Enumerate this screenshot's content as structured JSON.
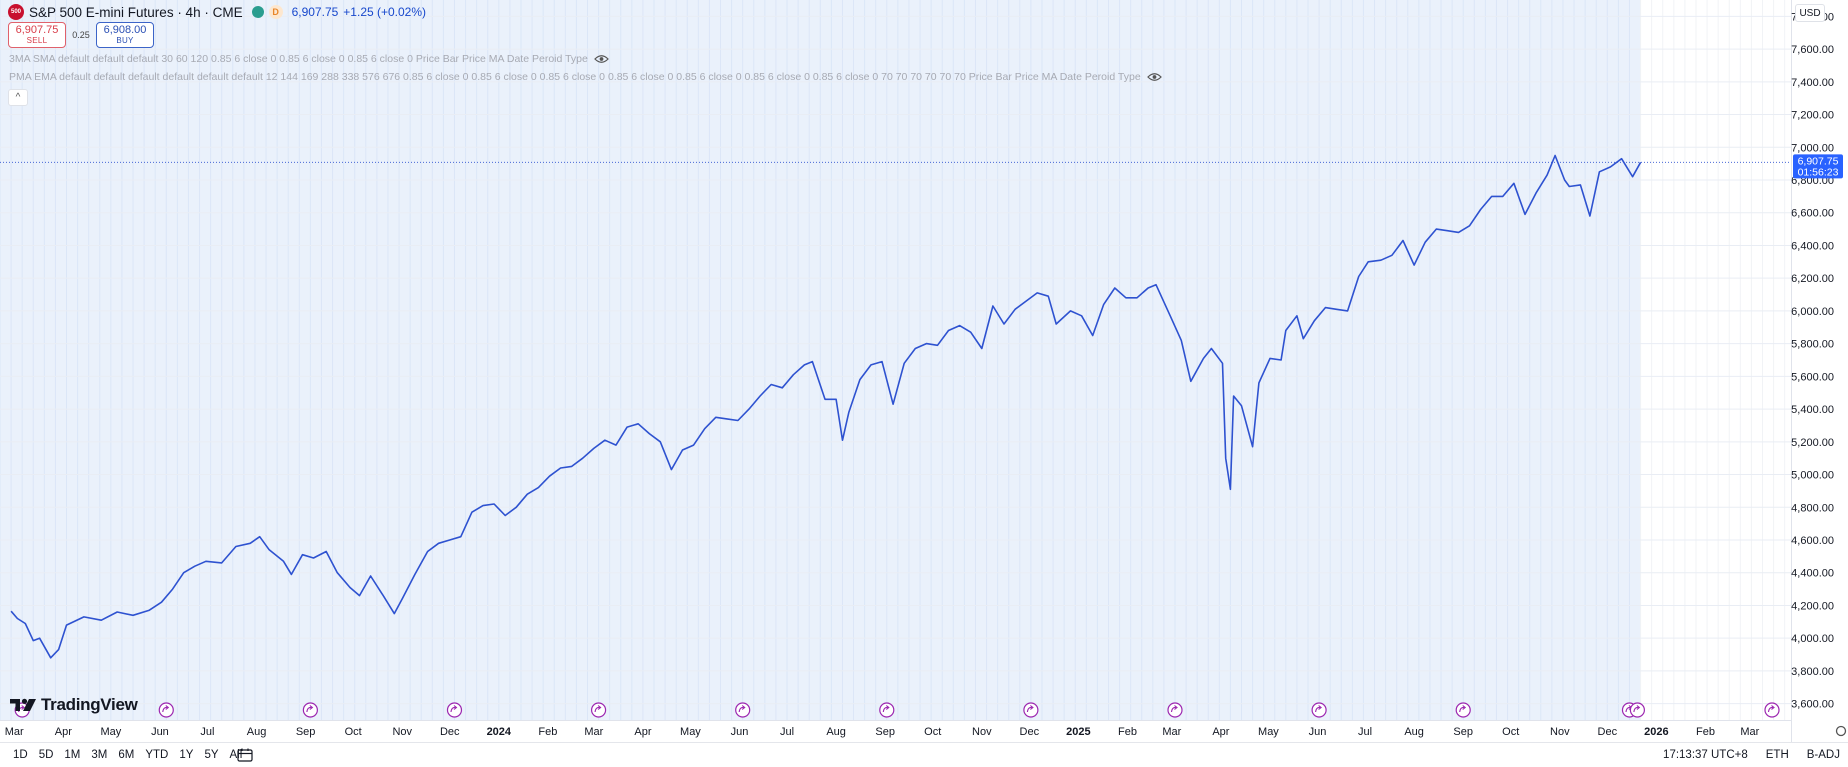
{
  "window": {
    "symbol_logo_text": "500",
    "title": "S&P 500 E-mini Futures · 4h · CME",
    "flag": "D",
    "last_price": "6,907.75",
    "change": "+1.25 (+0.02%)"
  },
  "trade": {
    "sell_price": "6,907.75",
    "sell_label": "SELL",
    "spread": "0.25",
    "buy_price": "6,908.00",
    "buy_label": "BUY"
  },
  "indicators": [
    {
      "text": "3MA SMA default default default 30 60 120 0.85 6 close 0 0.85 6 close 0 0.85 6 close 0 Price Bar Price MA Date Peroid Type"
    },
    {
      "text": "PMA EMA default default default default default default 12 144 169 288 338 576 676 0.85 6 close 0 0.85 6 close 0 0.85 6 close 0 0.85 6 close 0 0.85 6 close 0 0.85 6 close 0 0.85 6 close 0 70 70 70 70 70 70 Price Bar Price MA Date Peroid Type"
    }
  ],
  "collapse_symbol": "^",
  "logo_text": "TradingView",
  "currency": "USD",
  "price_label": {
    "price": "6,907.75",
    "countdown": "01:56:23"
  },
  "ranges": [
    "1D",
    "5D",
    "1M",
    "3M",
    "6M",
    "YTD",
    "1Y",
    "5Y",
    "All"
  ],
  "status": {
    "time": "17:13:37 UTC+8",
    "session": "ETH",
    "adjust": "B-ADJ"
  },
  "colors": {
    "series": "#2e52d0",
    "band": "#eaf1fb",
    "accent": "#2962ff",
    "event_marker": "#9c27b0"
  },
  "icons": {
    "settings": "gear-icon",
    "calendar": "calendar-icon",
    "eye": "eye-icon",
    "event": "event-arrow-icon"
  },
  "chart_data": {
    "type": "line",
    "series": [
      {
        "values": [
          [
            "2023-02-27",
            4165
          ],
          [
            "2023-03-03",
            4120
          ],
          [
            "2023-03-08",
            4090
          ],
          [
            "2023-03-13",
            3985
          ],
          [
            "2023-03-17",
            4000
          ],
          [
            "2023-03-24",
            3880
          ],
          [
            "2023-03-29",
            3930
          ],
          [
            "2023-04-03",
            4080
          ],
          [
            "2023-04-14",
            4130
          ],
          [
            "2023-04-25",
            4110
          ],
          [
            "2023-05-05",
            4160
          ],
          [
            "2023-05-15",
            4140
          ],
          [
            "2023-05-25",
            4170
          ],
          [
            "2023-06-02",
            4220
          ],
          [
            "2023-06-09",
            4300
          ],
          [
            "2023-06-16",
            4400
          ],
          [
            "2023-06-23",
            4440
          ],
          [
            "2023-06-30",
            4470
          ],
          [
            "2023-07-10",
            4460
          ],
          [
            "2023-07-19",
            4560
          ],
          [
            "2023-07-28",
            4580
          ],
          [
            "2023-08-03",
            4620
          ],
          [
            "2023-08-09",
            4540
          ],
          [
            "2023-08-18",
            4470
          ],
          [
            "2023-08-23",
            4390
          ],
          [
            "2023-08-30",
            4510
          ],
          [
            "2023-09-06",
            4490
          ],
          [
            "2023-09-14",
            4530
          ],
          [
            "2023-09-21",
            4400
          ],
          [
            "2023-09-29",
            4310
          ],
          [
            "2023-10-05",
            4260
          ],
          [
            "2023-10-12",
            4380
          ],
          [
            "2023-10-20",
            4260
          ],
          [
            "2023-10-27",
            4150
          ],
          [
            "2023-11-01",
            4240
          ],
          [
            "2023-11-09",
            4390
          ],
          [
            "2023-11-17",
            4530
          ],
          [
            "2023-11-24",
            4580
          ],
          [
            "2023-12-01",
            4600
          ],
          [
            "2023-12-08",
            4620
          ],
          [
            "2023-12-15",
            4770
          ],
          [
            "2023-12-22",
            4810
          ],
          [
            "2023-12-29",
            4820
          ],
          [
            "2024-01-05",
            4750
          ],
          [
            "2024-01-12",
            4800
          ],
          [
            "2024-01-19",
            4880
          ],
          [
            "2024-01-26",
            4920
          ],
          [
            "2024-02-02",
            4990
          ],
          [
            "2024-02-09",
            5040
          ],
          [
            "2024-02-16",
            5050
          ],
          [
            "2024-02-23",
            5100
          ],
          [
            "2024-03-01",
            5160
          ],
          [
            "2024-03-08",
            5210
          ],
          [
            "2024-03-15",
            5180
          ],
          [
            "2024-03-22",
            5290
          ],
          [
            "2024-03-29",
            5310
          ],
          [
            "2024-04-05",
            5250
          ],
          [
            "2024-04-12",
            5200
          ],
          [
            "2024-04-19",
            5030
          ],
          [
            "2024-04-26",
            5150
          ],
          [
            "2024-05-03",
            5180
          ],
          [
            "2024-05-10",
            5280
          ],
          [
            "2024-05-17",
            5350
          ],
          [
            "2024-05-24",
            5340
          ],
          [
            "2024-05-31",
            5330
          ],
          [
            "2024-06-07",
            5400
          ],
          [
            "2024-06-14",
            5480
          ],
          [
            "2024-06-21",
            5550
          ],
          [
            "2024-06-28",
            5530
          ],
          [
            "2024-07-05",
            5610
          ],
          [
            "2024-07-12",
            5670
          ],
          [
            "2024-07-17",
            5690
          ],
          [
            "2024-07-25",
            5460
          ],
          [
            "2024-08-01",
            5460
          ],
          [
            "2024-08-05",
            5210
          ],
          [
            "2024-08-09",
            5380
          ],
          [
            "2024-08-16",
            5580
          ],
          [
            "2024-08-23",
            5670
          ],
          [
            "2024-08-30",
            5690
          ],
          [
            "2024-09-06",
            5430
          ],
          [
            "2024-09-13",
            5680
          ],
          [
            "2024-09-20",
            5770
          ],
          [
            "2024-09-27",
            5800
          ],
          [
            "2024-10-04",
            5790
          ],
          [
            "2024-10-11",
            5880
          ],
          [
            "2024-10-18",
            5910
          ],
          [
            "2024-10-25",
            5870
          ],
          [
            "2024-11-01",
            5770
          ],
          [
            "2024-11-08",
            6030
          ],
          [
            "2024-11-15",
            5920
          ],
          [
            "2024-11-22",
            6010
          ],
          [
            "2024-11-29",
            6060
          ],
          [
            "2024-12-06",
            6110
          ],
          [
            "2024-12-13",
            6090
          ],
          [
            "2024-12-18",
            5920
          ],
          [
            "2024-12-27",
            6000
          ],
          [
            "2025-01-03",
            5970
          ],
          [
            "2025-01-10",
            5850
          ],
          [
            "2025-01-17",
            6040
          ],
          [
            "2025-01-24",
            6140
          ],
          [
            "2025-01-31",
            6080
          ],
          [
            "2025-02-07",
            6080
          ],
          [
            "2025-02-14",
            6140
          ],
          [
            "2025-02-19",
            6160
          ],
          [
            "2025-02-28",
            5970
          ],
          [
            "2025-03-07",
            5820
          ],
          [
            "2025-03-13",
            5570
          ],
          [
            "2025-03-21",
            5710
          ],
          [
            "2025-03-26",
            5770
          ],
          [
            "2025-04-02",
            5680
          ],
          [
            "2025-04-04",
            5100
          ],
          [
            "2025-04-07",
            4910
          ],
          [
            "2025-04-09",
            5480
          ],
          [
            "2025-04-14",
            5420
          ],
          [
            "2025-04-21",
            5170
          ],
          [
            "2025-04-25",
            5560
          ],
          [
            "2025-05-02",
            5710
          ],
          [
            "2025-05-09",
            5700
          ],
          [
            "2025-05-12",
            5880
          ],
          [
            "2025-05-19",
            5970
          ],
          [
            "2025-05-23",
            5830
          ],
          [
            "2025-05-30",
            5940
          ],
          [
            "2025-06-06",
            6020
          ],
          [
            "2025-06-13",
            6010
          ],
          [
            "2025-06-20",
            6000
          ],
          [
            "2025-06-27",
            6210
          ],
          [
            "2025-07-03",
            6300
          ],
          [
            "2025-07-11",
            6310
          ],
          [
            "2025-07-18",
            6340
          ],
          [
            "2025-07-25",
            6430
          ],
          [
            "2025-08-01",
            6280
          ],
          [
            "2025-08-08",
            6420
          ],
          [
            "2025-08-15",
            6500
          ],
          [
            "2025-08-22",
            6490
          ],
          [
            "2025-08-29",
            6480
          ],
          [
            "2025-09-05",
            6520
          ],
          [
            "2025-09-12",
            6620
          ],
          [
            "2025-09-19",
            6700
          ],
          [
            "2025-09-26",
            6700
          ],
          [
            "2025-10-03",
            6780
          ],
          [
            "2025-10-10",
            6590
          ],
          [
            "2025-10-17",
            6720
          ],
          [
            "2025-10-24",
            6830
          ],
          [
            "2025-10-29",
            6950
          ],
          [
            "2025-11-04",
            6800
          ],
          [
            "2025-11-07",
            6760
          ],
          [
            "2025-11-14",
            6770
          ],
          [
            "2025-11-20",
            6580
          ],
          [
            "2025-11-26",
            6850
          ],
          [
            "2025-12-03",
            6880
          ],
          [
            "2025-12-10",
            6930
          ],
          [
            "2025-12-17",
            6820
          ],
          [
            "2025-12-22",
            6908
          ]
        ]
      }
    ],
    "ylim": [
      3500,
      7900
    ],
    "y_ticks": [
      3600,
      3800,
      4000,
      4200,
      4400,
      4600,
      4800,
      5000,
      5200,
      5400,
      5600,
      5800,
      6000,
      6200,
      6400,
      6600,
      6800,
      7000,
      7200,
      7400,
      7600,
      7800
    ],
    "x_ticks": [
      {
        "label": "Mar",
        "d": "2023-03-01"
      },
      {
        "label": "Apr",
        "d": "2023-04-01"
      },
      {
        "label": "May",
        "d": "2023-05-01"
      },
      {
        "label": "Jun",
        "d": "2023-06-01"
      },
      {
        "label": "Jul",
        "d": "2023-07-01"
      },
      {
        "label": "Aug",
        "d": "2023-08-01"
      },
      {
        "label": "Sep",
        "d": "2023-09-01"
      },
      {
        "label": "Oct",
        "d": "2023-10-01"
      },
      {
        "label": "Nov",
        "d": "2023-11-01"
      },
      {
        "label": "Dec",
        "d": "2023-12-01"
      },
      {
        "label": "2024",
        "d": "2024-01-01",
        "bold": true
      },
      {
        "label": "Feb",
        "d": "2024-02-01"
      },
      {
        "label": "Mar",
        "d": "2024-03-01"
      },
      {
        "label": "Apr",
        "d": "2024-04-01"
      },
      {
        "label": "May",
        "d": "2024-05-01"
      },
      {
        "label": "Jun",
        "d": "2024-06-01"
      },
      {
        "label": "Jul",
        "d": "2024-07-01"
      },
      {
        "label": "Aug",
        "d": "2024-08-01"
      },
      {
        "label": "Sep",
        "d": "2024-09-01"
      },
      {
        "label": "Oct",
        "d": "2024-10-01"
      },
      {
        "label": "Nov",
        "d": "2024-11-01"
      },
      {
        "label": "Dec",
        "d": "2024-12-01"
      },
      {
        "label": "2025",
        "d": "2025-01-01",
        "bold": true
      },
      {
        "label": "Feb",
        "d": "2025-02-01"
      },
      {
        "label": "Mar",
        "d": "2025-03-01"
      },
      {
        "label": "Apr",
        "d": "2025-04-01"
      },
      {
        "label": "May",
        "d": "2025-05-01"
      },
      {
        "label": "Jun",
        "d": "2025-06-01"
      },
      {
        "label": "Jul",
        "d": "2025-07-01"
      },
      {
        "label": "Aug",
        "d": "2025-08-01"
      },
      {
        "label": "Sep",
        "d": "2025-09-01"
      },
      {
        "label": "Oct",
        "d": "2025-10-01"
      },
      {
        "label": "Nov",
        "d": "2025-11-01"
      },
      {
        "label": "Dec",
        "d": "2025-12-01"
      },
      {
        "label": "2026",
        "d": "2026-01-01",
        "bold": true
      },
      {
        "label": "Feb",
        "d": "2026-02-01"
      },
      {
        "label": "Mar",
        "d": "2026-03-01"
      }
    ],
    "x_range": [
      "2023-02-20",
      "2026-03-27"
    ],
    "data_end": "2025-12-22",
    "events": [
      "2023-03-06",
      "2023-06-05",
      "2023-09-04",
      "2023-12-04",
      "2024-03-04",
      "2024-06-03",
      "2024-09-02",
      "2024-12-02",
      "2025-03-03",
      "2025-06-02",
      "2025-09-01",
      "2025-12-15",
      "2025-12-20",
      "2026-03-15"
    ],
    "grid": true
  }
}
